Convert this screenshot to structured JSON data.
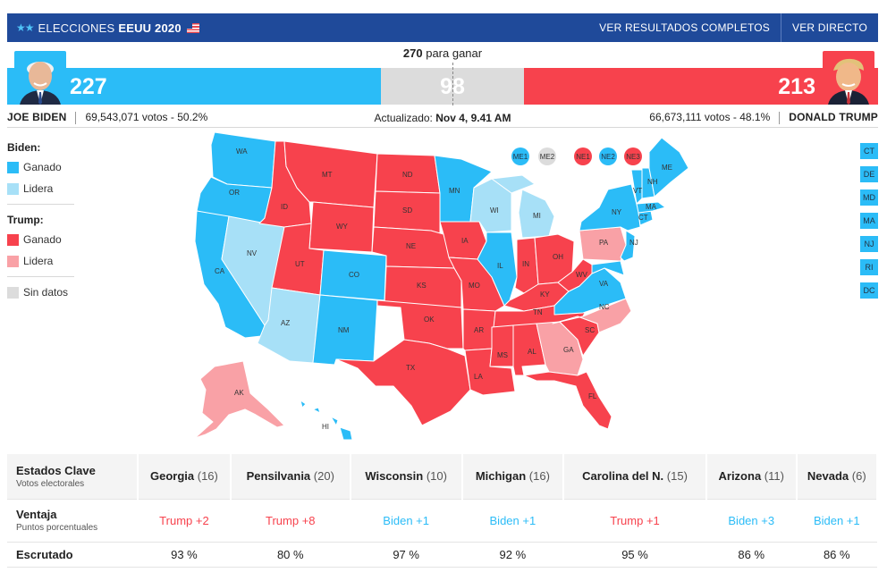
{
  "header": {
    "brand_light": "ELECCIONES",
    "brand_bold": "EEUU 2020",
    "stars": "★★",
    "link_results": "VER RESULTADOS COMPLETOS",
    "link_live": "VER DIRECTO"
  },
  "tally": {
    "to_win_number": "270",
    "to_win_text": "para ganar",
    "biden_ev": "227",
    "undecided_ev": "98",
    "trump_ev": "213",
    "biden_name": "JOE BIDEN",
    "biden_votes": "69,543,071 votos - 50.2%",
    "trump_name": "DONALD TRUMP",
    "trump_votes": "66,673,111 votos - 48.1%",
    "updated_label": "Actualizado:",
    "updated_value": "Nov 4, 9.41 AM"
  },
  "legend": {
    "biden_title": "Biden:",
    "biden_won": "Ganado",
    "biden_leads": "Lidera",
    "trump_title": "Trump:",
    "trump_won": "Ganado",
    "trump_leads": "Lidera",
    "no_data": "Sin datos"
  },
  "colors": {
    "biden_won": "#2bbcf7",
    "biden_leads": "#a7e0f7",
    "trump_won": "#f7424d",
    "trump_leads": "#f9a1a6",
    "no_data": "#dcdcdc"
  },
  "map_labels": {
    "WA": "WA",
    "OR": "OR",
    "CA": "CA",
    "NV": "NV",
    "ID": "ID",
    "MT": "MT",
    "WY": "WY",
    "UT": "UT",
    "AZ": "AZ",
    "CO": "CO",
    "NM": "NM",
    "ND": "ND",
    "SD": "SD",
    "NE": "NE",
    "KS": "KS",
    "OK": "OK",
    "TX": "TX",
    "MN": "MN",
    "IA": "IA",
    "MO": "MO",
    "AR": "AR",
    "LA": "LA",
    "WI": "WI",
    "IL": "IL",
    "MI": "MI",
    "IN": "IN",
    "OH": "OH",
    "KY": "KY",
    "TN": "TN",
    "MS": "MS",
    "AL": "AL",
    "GA": "GA",
    "FL": "FL",
    "SC": "SC",
    "NC": "NC",
    "VA": "VA",
    "WV": "WV",
    "PA": "PA",
    "NY": "NY",
    "VT": "VT",
    "NH": "NH",
    "ME": "ME",
    "MA": "MA",
    "CT": "CT",
    "NJ": "NJ",
    "AK": "AK",
    "HI": "HI"
  },
  "districts": [
    "ME1",
    "ME2",
    "NE1",
    "NE2",
    "NE3"
  ],
  "small_states": [
    "CT",
    "DE",
    "MD",
    "MA",
    "NJ",
    "RI",
    "DC"
  ],
  "key_states": {
    "row1_title": "Estados Clave",
    "row1_sub": "Votos electorales",
    "row2_title": "Ventaja",
    "row2_sub": "Puntos porcentuales",
    "row3_title": "Escrutado",
    "states": [
      {
        "name": "Georgia",
        "ev": "(16)",
        "lead": "Trump +2",
        "counted": "93 %"
      },
      {
        "name": "Pensilvania",
        "ev": "(20)",
        "lead": "Trump +8",
        "counted": "80 %"
      },
      {
        "name": "Wisconsin",
        "ev": "(10)",
        "lead": "Biden +1",
        "counted": "97 %"
      },
      {
        "name": "Michigan",
        "ev": "(16)",
        "lead": "Biden +1",
        "counted": "92 %"
      },
      {
        "name": "Carolina del N.",
        "ev": "(15)",
        "lead": "Trump +1",
        "counted": "95 %"
      },
      {
        "name": "Arizona",
        "ev": "(11)",
        "lead": "Biden +3",
        "counted": "86 %"
      },
      {
        "name": "Nevada",
        "ev": "(6)",
        "lead": "Biden +1",
        "counted": "86 %"
      }
    ]
  }
}
